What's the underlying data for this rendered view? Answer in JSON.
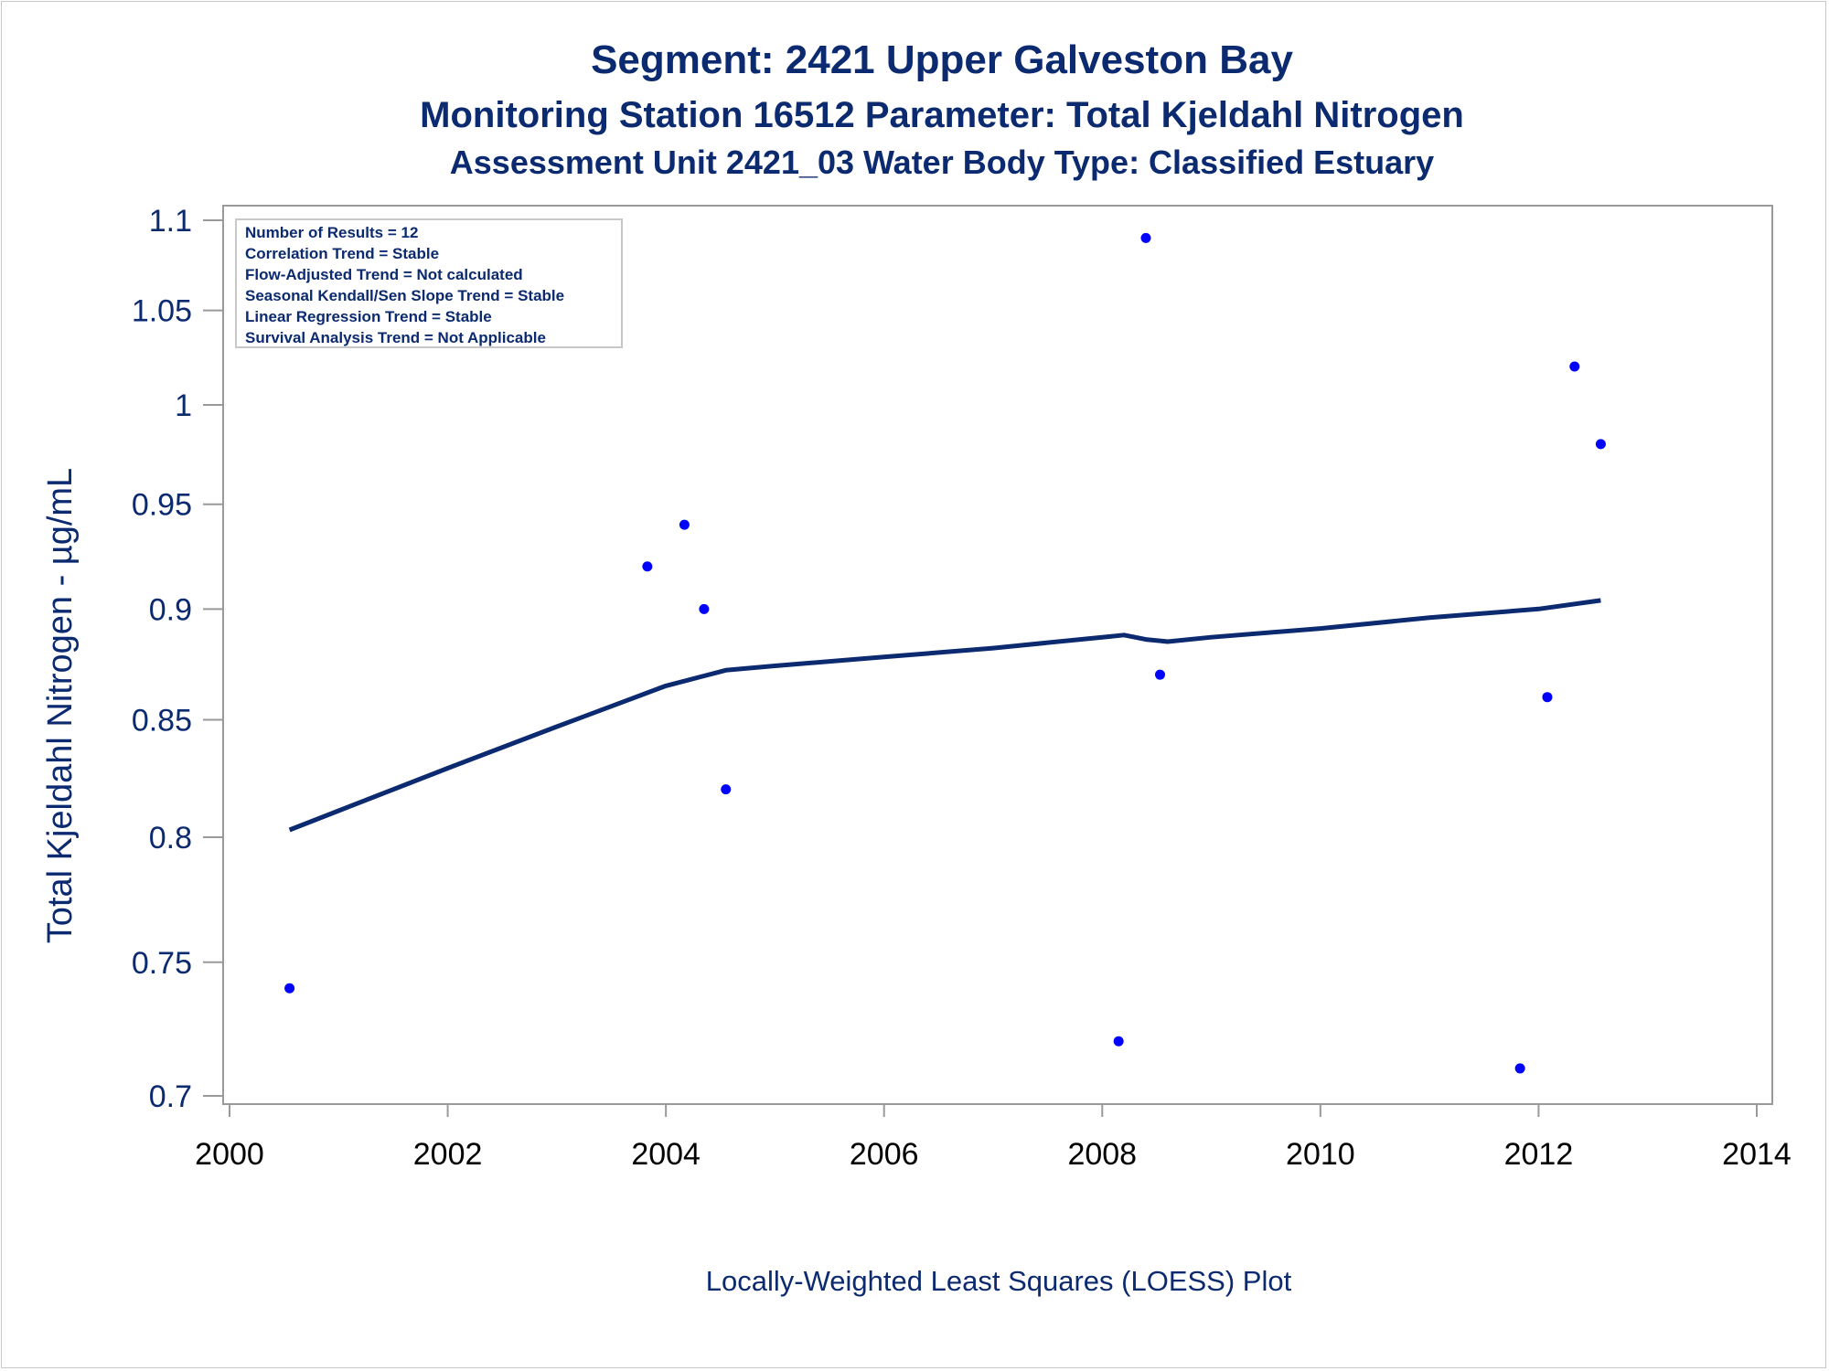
{
  "chart_data": {
    "type": "scatter",
    "title": "Segment: 2421  Upper Galveston Bay",
    "subtitle": "Monitoring Station 16512 Parameter: Total Kjeldahl Nitrogen",
    "subtitle2": "Assessment Unit 2421_03   Water Body Type: Classified Estuary",
    "ylabel": "Total Kjeldahl Nitrogen -  µg/mL",
    "footnote": "Locally-Weighted Least Squares (LOESS) Plot",
    "xlim": [
      2000,
      2014
    ],
    "ylim": [
      0.7,
      1.1
    ],
    "y_scale": "log",
    "x_ticks": [
      "2000",
      "2002",
      "2004",
      "2006",
      "2008",
      "2010",
      "2012",
      "2014"
    ],
    "y_ticks": [
      "1.1",
      "1.05",
      "1",
      "0.95",
      "0.9",
      "0.85",
      "0.8",
      "0.75",
      "0.7"
    ],
    "grid": false,
    "stats_box": {
      "placement": "top-left",
      "lines": [
        "Number of Results = 12",
        "Correlation Trend = Stable",
        "Flow-Adjusted Trend = Not calculated",
        "Seasonal Kendall/Sen Slope Trend = Stable",
        "Linear Regression Trend = Stable",
        "Survival Analysis Trend = Not Applicable"
      ]
    },
    "series": [
      {
        "kind": "points",
        "color": "#0000ff",
        "points": [
          {
            "x": 2000.55,
            "y": 0.74
          },
          {
            "x": 2003.83,
            "y": 0.92
          },
          {
            "x": 2004.17,
            "y": 0.94
          },
          {
            "x": 2004.35,
            "y": 0.9
          },
          {
            "x": 2004.55,
            "y": 0.82
          },
          {
            "x": 2008.15,
            "y": 0.72
          },
          {
            "x": 2008.4,
            "y": 1.09
          },
          {
            "x": 2008.53,
            "y": 0.87
          },
          {
            "x": 2011.83,
            "y": 0.71
          },
          {
            "x": 2012.08,
            "y": 0.86
          },
          {
            "x": 2012.33,
            "y": 1.02
          },
          {
            "x": 2012.57,
            "y": 0.98
          }
        ]
      },
      {
        "kind": "line",
        "color": "#0b2a6f",
        "points": [
          {
            "x": 2000.55,
            "y": 0.803
          },
          {
            "x": 2001.0,
            "y": 0.811
          },
          {
            "x": 2002.0,
            "y": 0.829
          },
          {
            "x": 2003.0,
            "y": 0.847
          },
          {
            "x": 2004.0,
            "y": 0.865
          },
          {
            "x": 2004.55,
            "y": 0.872
          },
          {
            "x": 2005.0,
            "y": 0.874
          },
          {
            "x": 2006.0,
            "y": 0.878
          },
          {
            "x": 2007.0,
            "y": 0.882
          },
          {
            "x": 2008.0,
            "y": 0.887
          },
          {
            "x": 2008.2,
            "y": 0.888
          },
          {
            "x": 2008.4,
            "y": 0.886
          },
          {
            "x": 2008.6,
            "y": 0.885
          },
          {
            "x": 2009.0,
            "y": 0.887
          },
          {
            "x": 2010.0,
            "y": 0.891
          },
          {
            "x": 2011.0,
            "y": 0.896
          },
          {
            "x": 2012.0,
            "y": 0.9
          },
          {
            "x": 2012.57,
            "y": 0.904
          }
        ]
      }
    ]
  }
}
